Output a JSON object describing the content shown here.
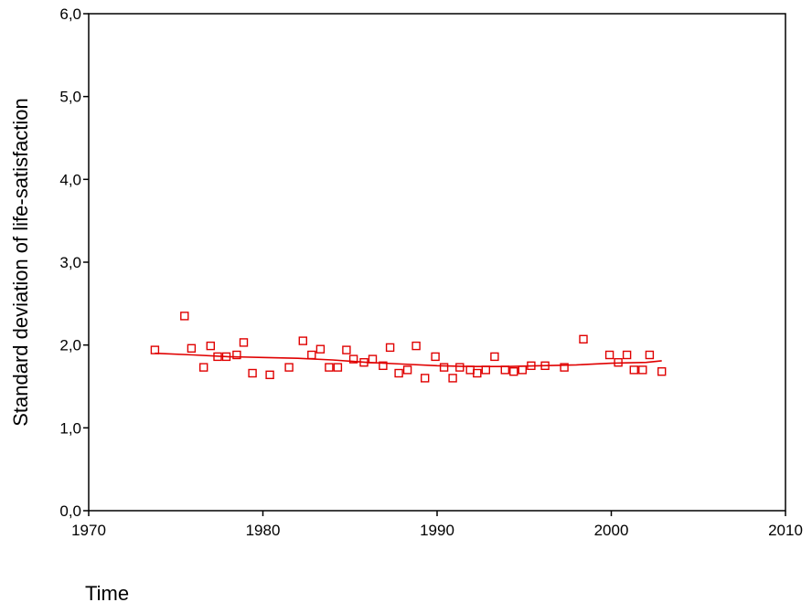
{
  "chart_data": {
    "type": "scatter",
    "title": "",
    "xlabel": "Time",
    "ylabel": "Standard deviation of life-satisfaction",
    "xlim": [
      1970,
      2010
    ],
    "ylim": [
      0.0,
      6.0
    ],
    "x_ticks": [
      1970,
      1980,
      1990,
      2000,
      2010
    ],
    "y_ticks": [
      0.0,
      1.0,
      2.0,
      3.0,
      4.0,
      5.0,
      6.0
    ],
    "y_tick_labels": [
      "0,0",
      "1,0",
      "2,0",
      "3,0",
      "4,0",
      "5,0",
      "6,0"
    ],
    "x_tick_labels": [
      "1970",
      "1980",
      "1990",
      "2000",
      "2010"
    ],
    "grid": false,
    "marker_color": "#e00000",
    "series": [
      {
        "type": "scatter",
        "marker": "open-square",
        "x": [
          1973.8,
          1975.5,
          1975.9,
          1976.6,
          1977.0,
          1977.4,
          1977.9,
          1978.5,
          1978.9,
          1979.4,
          1980.4,
          1981.5,
          1982.3,
          1982.8,
          1983.3,
          1983.8,
          1984.3,
          1984.8,
          1985.2,
          1985.8,
          1986.3,
          1986.9,
          1987.3,
          1987.8,
          1988.3,
          1988.8,
          1989.3,
          1989.9,
          1990.4,
          1990.9,
          1991.3,
          1991.9,
          1992.3,
          1992.8,
          1993.3,
          1993.9,
          1994.4,
          1994.9,
          1995.4,
          1996.2,
          1997.3,
          1998.4,
          1999.9,
          2000.4,
          2000.9,
          2001.3,
          2001.8,
          2002.2,
          2002.9
        ],
        "y": [
          1.94,
          2.35,
          1.96,
          1.73,
          1.99,
          1.86,
          1.86,
          1.88,
          2.03,
          1.66,
          1.64,
          1.73,
          2.05,
          1.88,
          1.95,
          1.73,
          1.73,
          1.94,
          1.83,
          1.79,
          1.83,
          1.75,
          1.97,
          1.66,
          1.7,
          1.99,
          1.6,
          1.86,
          1.73,
          1.6,
          1.73,
          1.7,
          1.66,
          1.7,
          1.86,
          1.7,
          1.68,
          1.7,
          1.75,
          1.75,
          1.73,
          2.07,
          1.88,
          1.79,
          1.88,
          1.7,
          1.7,
          1.88,
          1.68
        ]
      },
      {
        "type": "line",
        "x": [
          1973.8,
          1976.0,
          1978.0,
          1980.0,
          1982.0,
          1984.0,
          1986.0,
          1988.0,
          1990.0,
          1992.0,
          1994.0,
          1996.0,
          1998.0,
          2000.0,
          2002.0,
          2002.9
        ],
        "y": [
          1.9,
          1.88,
          1.86,
          1.85,
          1.84,
          1.82,
          1.79,
          1.77,
          1.75,
          1.74,
          1.74,
          1.75,
          1.76,
          1.78,
          1.79,
          1.81
        ]
      }
    ]
  }
}
